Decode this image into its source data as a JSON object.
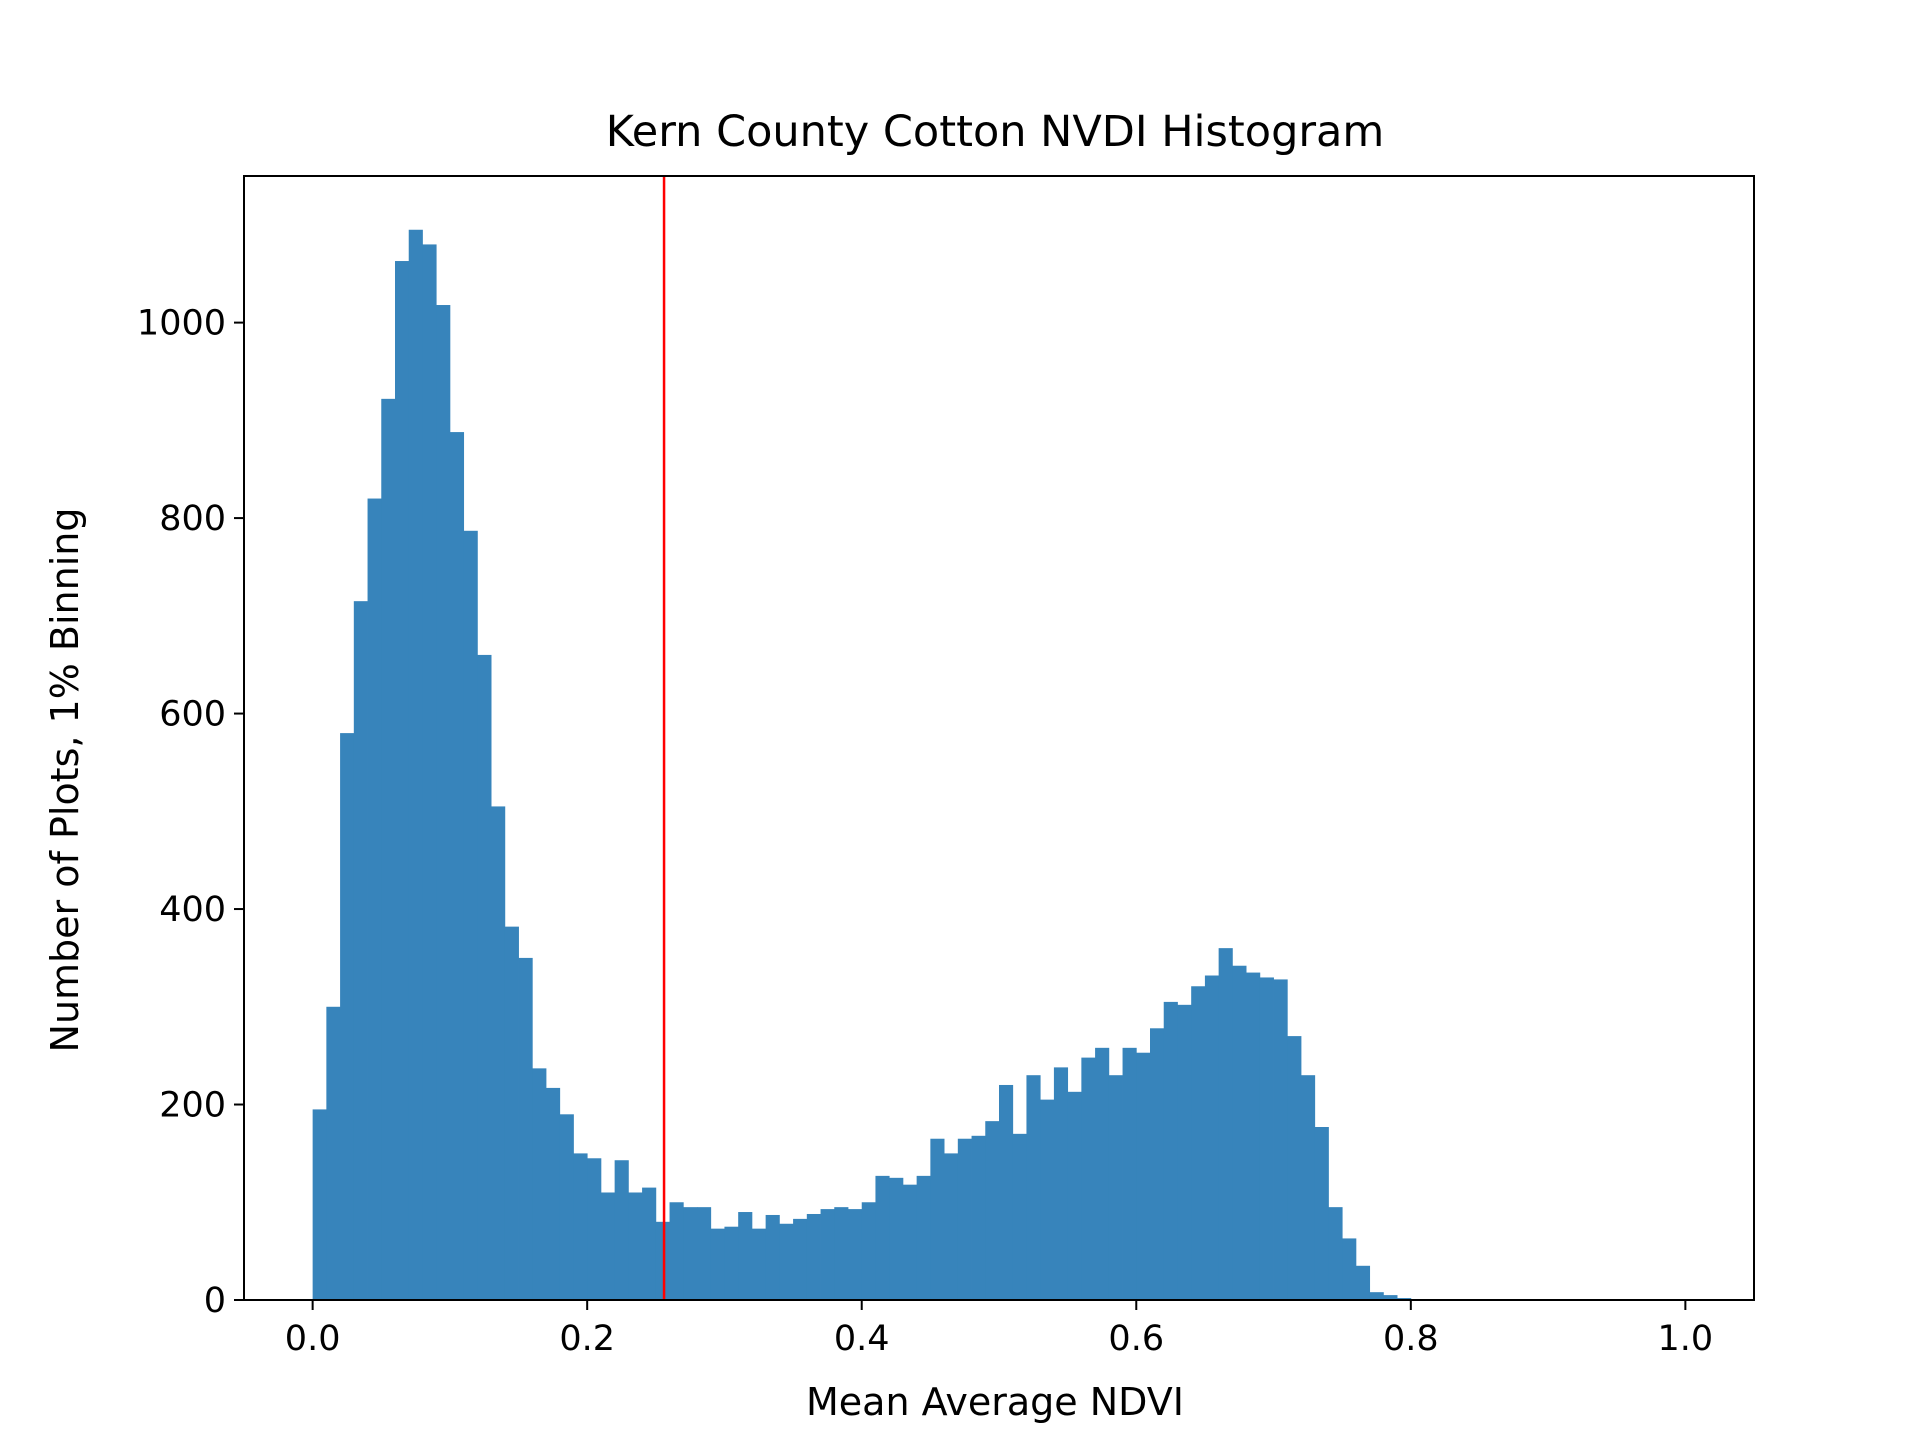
{
  "chart_data": {
    "type": "bar",
    "title": "Kern County Cotton NVDI Histogram",
    "xlabel": "Mean Average NDVI",
    "ylabel": "Number of Plots, 1% Binning",
    "xlim": [
      -0.05,
      1.05
    ],
    "ylim": [
      0,
      1150
    ],
    "x_ticks": [
      0.0,
      0.2,
      0.4,
      0.6,
      0.8,
      1.0
    ],
    "x_tick_labels": [
      "0.0",
      "0.2",
      "0.4",
      "0.6",
      "0.8",
      "1.0"
    ],
    "y_ticks": [
      0,
      200,
      400,
      600,
      800,
      1000
    ],
    "y_tick_labels": [
      "0",
      "200",
      "400",
      "600",
      "800",
      "1000"
    ],
    "bin_width": 0.01,
    "bin_start": 0.0,
    "values": [
      195,
      300,
      580,
      715,
      820,
      922,
      1063,
      1095,
      1080,
      1018,
      888,
      787,
      660,
      505,
      382,
      350,
      237,
      217,
      190,
      150,
      145,
      110,
      143,
      110,
      115,
      80,
      100,
      95,
      95,
      73,
      75,
      90,
      73,
      87,
      78,
      83,
      88,
      93,
      95,
      93,
      100,
      127,
      125,
      118,
      127,
      165,
      150,
      165,
      168,
      183,
      220,
      170,
      230,
      205,
      238,
      213,
      248,
      258,
      230,
      258,
      253,
      278,
      305,
      302,
      321,
      332,
      360,
      342,
      335,
      330,
      328,
      270,
      230,
      177,
      95,
      63,
      35,
      8,
      5,
      2,
      0,
      0,
      0,
      0,
      0,
      0,
      0,
      0,
      0,
      0,
      0,
      0,
      0,
      0,
      0,
      0,
      0,
      0,
      0,
      0
    ],
    "bar_color": "#3784bb",
    "vline": {
      "x": 0.256,
      "color": "#ff0000"
    },
    "grid": false,
    "legend": "none"
  }
}
